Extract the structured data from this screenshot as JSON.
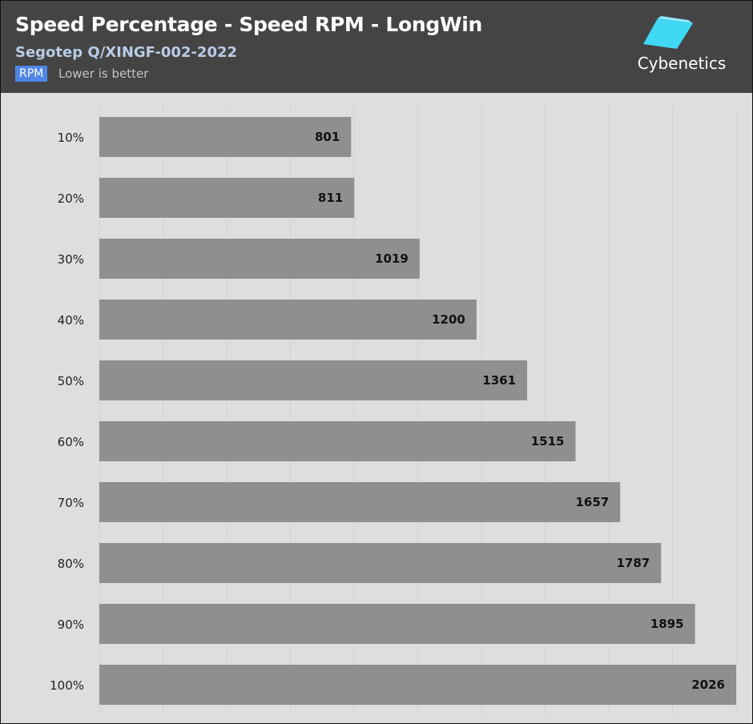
{
  "header": {
    "title": "Speed Percentage - Speed RPM - LongWin",
    "subtitle": "Segotep Q/XINGF-002-2022",
    "unit_badge": "RPM",
    "note": "Lower is better",
    "logo_text": "Cybenetics",
    "logo_icon": "cube-logo-icon"
  },
  "colors": {
    "header_bg": "#444444",
    "plot_bg": "#dedede",
    "bar": "#8f8f8f",
    "gridline": "#d2d2d2",
    "badge": "#4f86e8",
    "logo_accent": "#3fd8f5"
  },
  "chart_data": {
    "type": "bar",
    "orientation": "horizontal",
    "categories": [
      "10%",
      "20%",
      "30%",
      "40%",
      "50%",
      "60%",
      "70%",
      "80%",
      "90%",
      "100%"
    ],
    "values": [
      801,
      811,
      1019,
      1200,
      1361,
      1515,
      1657,
      1787,
      1895,
      2026
    ],
    "xlim": [
      0,
      2026
    ],
    "grid": "vertical",
    "legend": "none",
    "data_labels": true
  }
}
